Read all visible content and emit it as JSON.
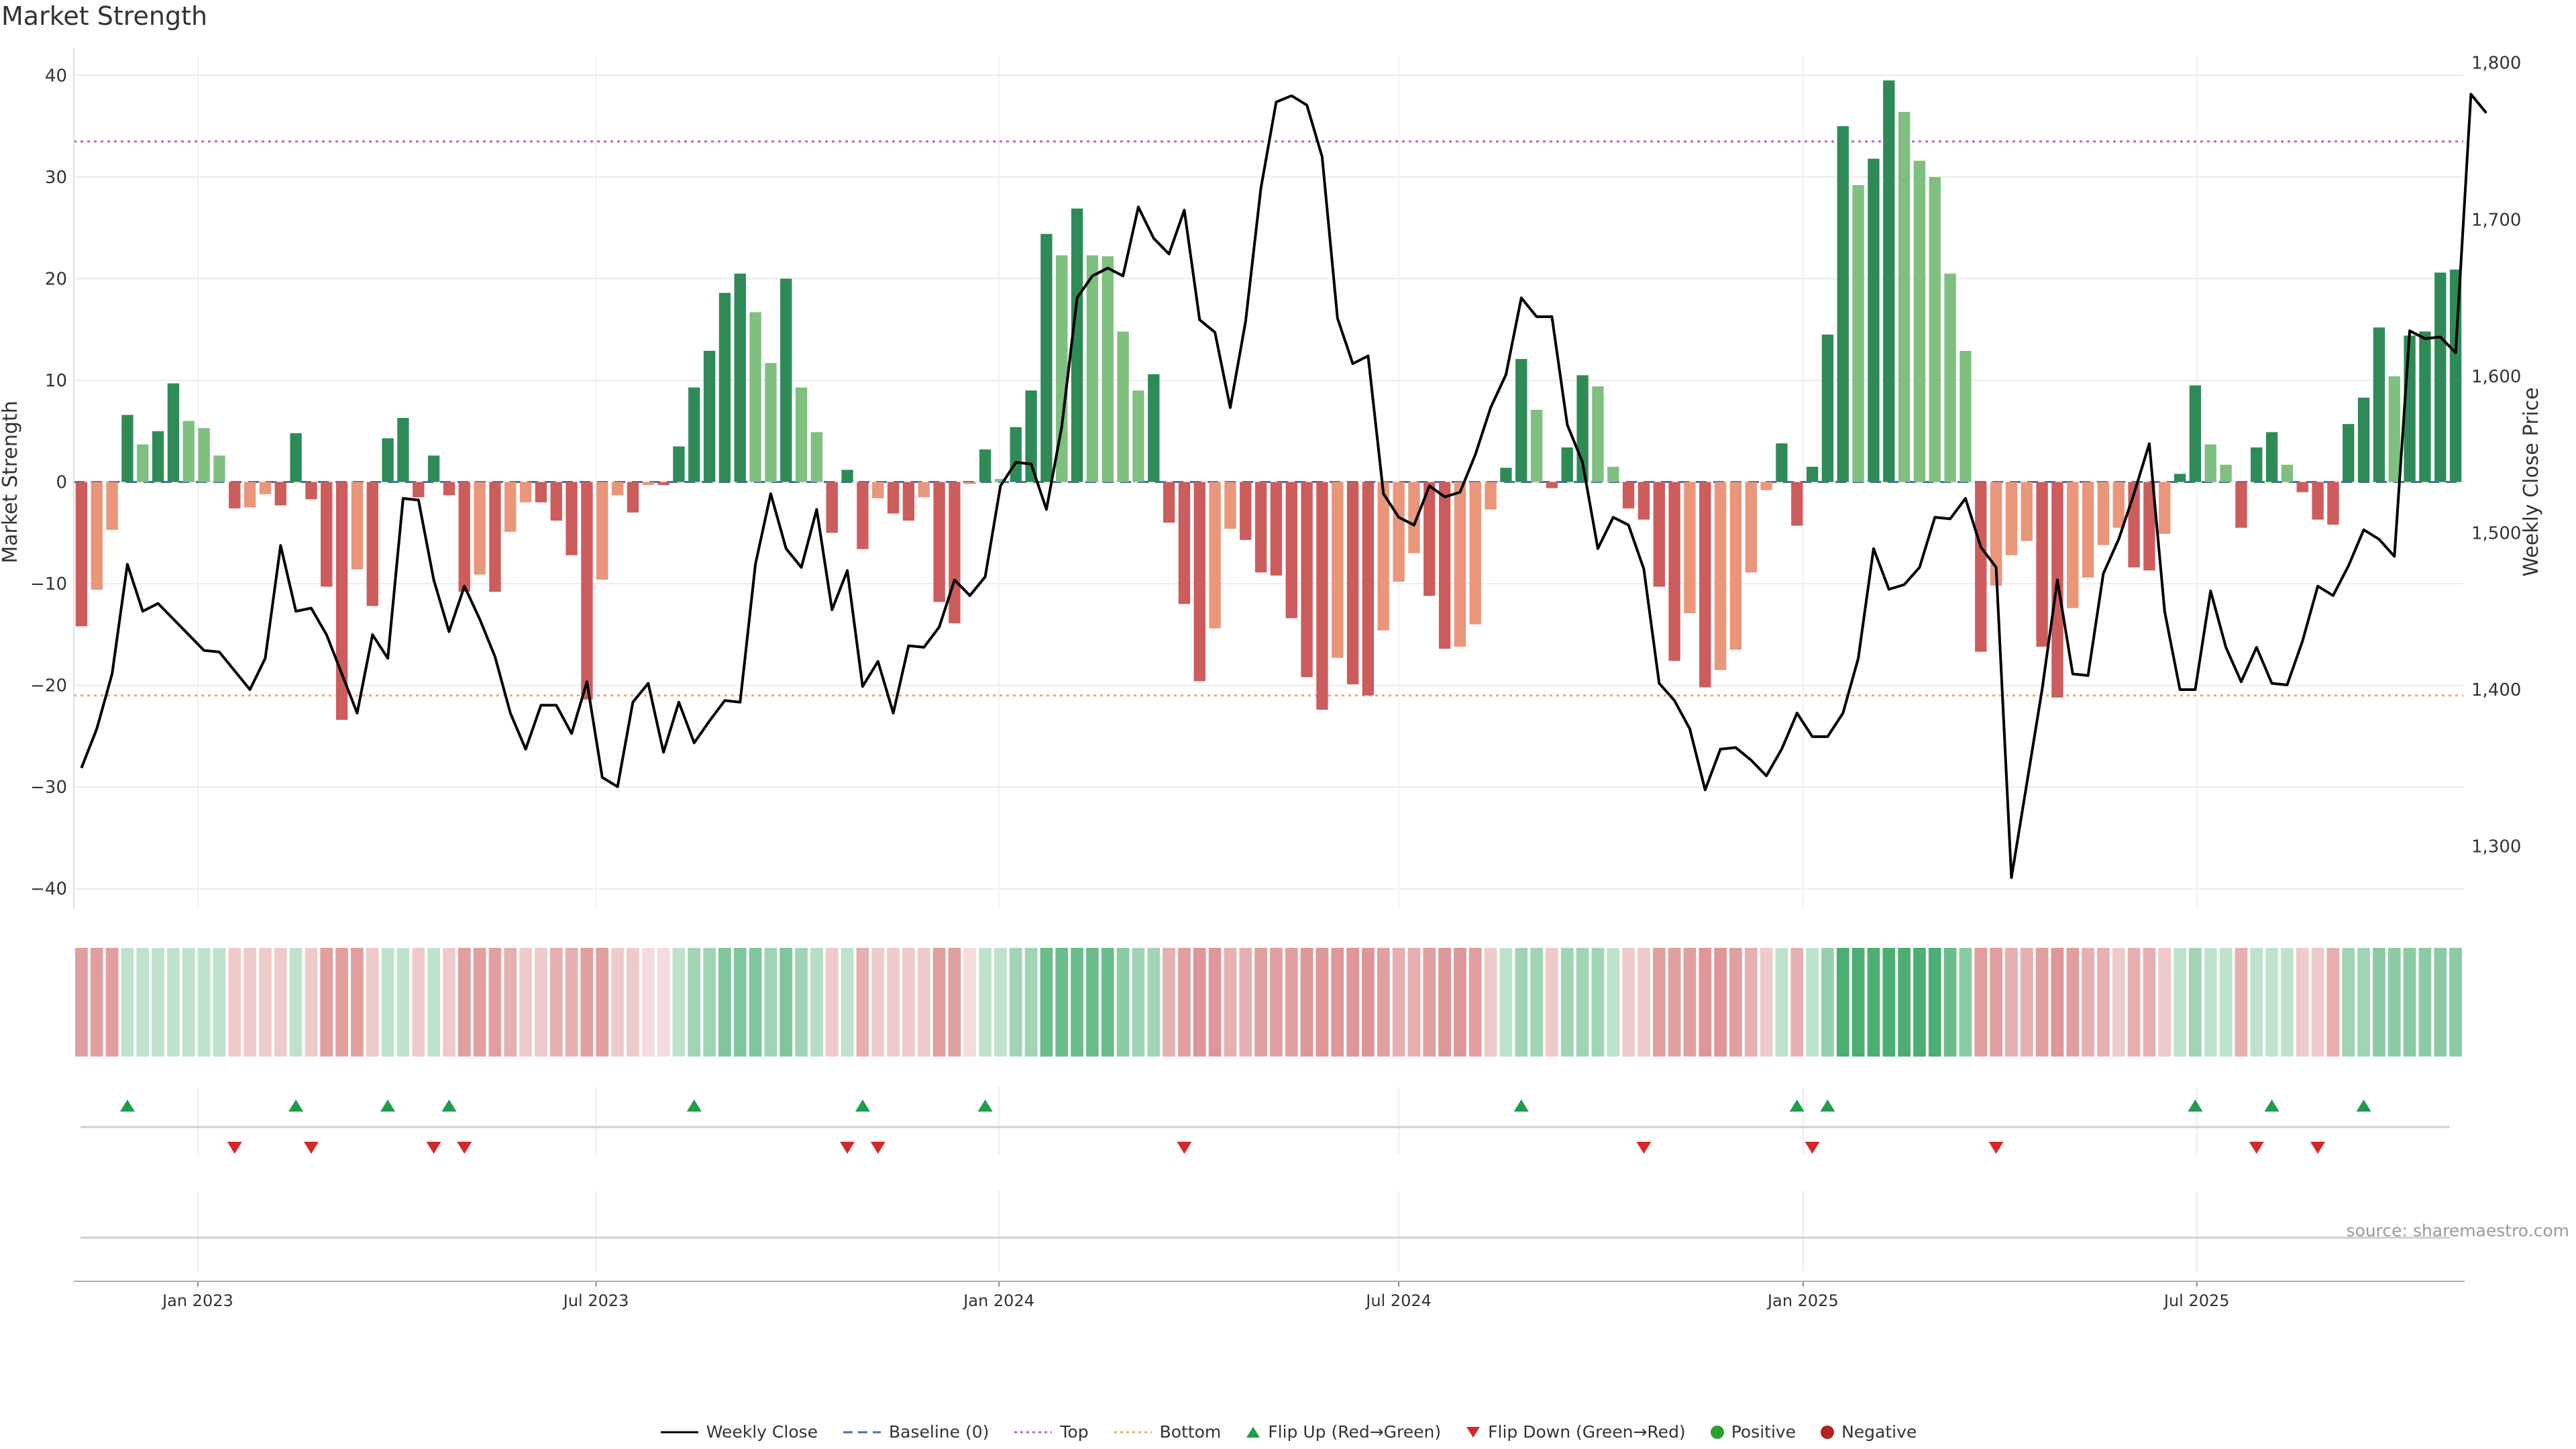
{
  "title": "Market Strength",
  "source": "source: sharemaestro.com",
  "colors": {
    "strong_green": "#2e8b57",
    "light_green": "#7fbf7f",
    "strong_red": "#cd5c5c",
    "light_red": "#e9967a",
    "line": "#000000",
    "baseline": "#4a6fa5",
    "top": "#b565c5",
    "bottom": "#f0a868",
    "flip_up": "#1e9e4a",
    "flip_down": "#d62728",
    "positive": "#2ca02c",
    "negative": "#b22222"
  },
  "legend": [
    {
      "key": "weekly_close",
      "label": "Weekly Close"
    },
    {
      "key": "baseline",
      "label": "Baseline (0)"
    },
    {
      "key": "top",
      "label": "Top"
    },
    {
      "key": "bottom",
      "label": "Bottom"
    },
    {
      "key": "flip_up",
      "label": "Flip Up (Red→Green)"
    },
    {
      "key": "flip_down",
      "label": "Flip Down (Green→Red)"
    },
    {
      "key": "positive",
      "label": "Positive"
    },
    {
      "key": "negative",
      "label": "Negative"
    }
  ],
  "chart_data": {
    "type": "bar",
    "ylabel": "Market Strength",
    "y2label": "Weekly Close Price",
    "ylim": [
      -42,
      42
    ],
    "y2lim": [
      1260,
      1805
    ],
    "yticks": [
      -40,
      -30,
      -20,
      -10,
      0,
      10,
      20,
      30,
      40
    ],
    "y2ticks": [
      1300,
      1400,
      1500,
      1600,
      1700,
      1800
    ],
    "y2ticklabels": [
      "1,300",
      "1,400",
      "1,500",
      "1,600",
      "1,700",
      "1,800"
    ],
    "xticks": [
      "Jan 2023",
      "Jul 2023",
      "Jan 2024",
      "Jul 2024",
      "Jan 2025",
      "Jul 2025"
    ],
    "xtick_weeks": [
      7.6,
      33.6,
      59.9,
      86.0,
      112.4,
      138.1
    ],
    "top_threshold": 33.5,
    "bottom_threshold": -21,
    "grid": true,
    "legend_position": "bottom",
    "strength": [
      -14.2,
      -10.6,
      -4.7,
      6.6,
      3.7,
      5.0,
      9.7,
      6.0,
      5.3,
      2.6,
      -2.6,
      -2.5,
      -1.2,
      -2.3,
      4.8,
      -1.7,
      -10.3,
      -23.4,
      -8.6,
      -12.2,
      4.3,
      6.3,
      -1.5,
      2.6,
      -1.3,
      -10.8,
      -9.1,
      -10.8,
      -4.9,
      -2.0,
      -2.0,
      -3.8,
      -7.2,
      -21.4,
      -9.6,
      -1.3,
      -3.0,
      -0.3,
      -0.3,
      3.5,
      9.3,
      12.9,
      18.6,
      20.5,
      16.7,
      11.7,
      20.0,
      9.3,
      4.9,
      -5.0,
      1.2,
      -6.6,
      -1.6,
      -3.1,
      -3.8,
      -1.5,
      -11.8,
      -13.9,
      -0.2,
      3.2,
      0.3,
      5.4,
      9.0,
      24.4,
      22.3,
      26.9,
      22.3,
      22.2,
      14.8,
      9.0,
      10.6,
      -4.0,
      -12.0,
      -19.6,
      -14.4,
      -4.6,
      -5.7,
      -8.9,
      -9.2,
      -13.4,
      -19.2,
      -22.4,
      -17.3,
      -19.9,
      -21.0,
      -14.6,
      -9.8,
      -7.0,
      -11.2,
      -16.4,
      -16.2,
      -14.0,
      -2.7,
      1.4,
      12.1,
      7.1,
      -0.6,
      3.4,
      10.5,
      9.4,
      1.5,
      -2.6,
      -3.7,
      -10.3,
      -17.6,
      -12.9,
      -20.2,
      -18.5,
      -16.5,
      -8.9,
      -0.8,
      3.8,
      -4.3,
      1.5,
      14.5,
      35.0,
      29.2,
      31.8,
      39.5,
      36.4,
      31.6,
      30.0,
      20.5,
      12.9,
      -16.7,
      -10.2,
      -7.2,
      -5.8,
      -16.2,
      -21.2,
      -12.4,
      -9.4,
      -6.2,
      -4.5,
      -8.4,
      -8.7,
      -5.1,
      0.8,
      9.5,
      3.7,
      1.7,
      -4.5,
      3.4,
      4.9,
      1.7,
      -1.0,
      -3.7,
      -4.2,
      5.7,
      8.3,
      15.2,
      10.4,
      14.4,
      14.8,
      20.6,
      20.9
    ],
    "weekly_close": [
      1350,
      1375,
      1410,
      1480,
      1450,
      1455,
      1445,
      1435,
      1425,
      1424,
      1412,
      1400,
      1420,
      1492,
      1450,
      1452,
      1435,
      1410,
      1385,
      1435,
      1420,
      1522,
      1521,
      1470,
      1437,
      1466,
      1445,
      1421,
      1385,
      1362,
      1390,
      1390,
      1372,
      1405,
      1344,
      1338,
      1392,
      1404,
      1360,
      1392,
      1366,
      1380,
      1393,
      1392,
      1480,
      1525,
      1490,
      1478,
      1515,
      1451,
      1476,
      1402,
      1418,
      1385,
      1428,
      1427,
      1440,
      1470,
      1460,
      1472,
      1530,
      1545,
      1544,
      1515,
      1568,
      1650,
      1664,
      1669,
      1664,
      1708,
      1688,
      1678,
      1706,
      1636,
      1628,
      1580,
      1635,
      1720,
      1775,
      1779,
      1773,
      1740,
      1637,
      1608,
      1613,
      1525,
      1510,
      1505,
      1530,
      1523,
      1526,
      1550,
      1580,
      1601,
      1650,
      1638,
      1638,
      1569,
      1545,
      1490,
      1510,
      1505,
      1477,
      1404,
      1393,
      1375,
      1336,
      1362,
      1363,
      1355,
      1345,
      1362,
      1385,
      1370,
      1370,
      1385,
      1420,
      1490,
      1464,
      1467,
      1478,
      1510,
      1509,
      1522,
      1491,
      1478,
      1280,
      1340,
      1400,
      1470,
      1410,
      1409,
      1474,
      1496,
      1525,
      1557,
      1450,
      1400,
      1400,
      1463,
      1427,
      1405,
      1427,
      1404,
      1403,
      1431,
      1466,
      1460,
      1479,
      1502,
      1496,
      1485,
      1629,
      1624,
      1625,
      1615,
      1780,
      1768
    ],
    "shade_intensity": [
      0.55,
      0.55,
      0.55,
      0.3,
      0.3,
      0.3,
      0.3,
      0.3,
      0.3,
      0.3,
      0.3,
      0.3,
      0.3,
      0.3,
      0.3,
      0.3,
      0.55,
      0.55,
      0.55,
      0.3,
      0.3,
      0.3,
      0.3,
      0.3,
      0.3,
      0.55,
      0.55,
      0.55,
      0.45,
      0.3,
      0.3,
      0.45,
      0.45,
      0.55,
      0.55,
      0.3,
      0.3,
      0.2,
      0.2,
      0.3,
      0.45,
      0.45,
      0.6,
      0.6,
      0.6,
      0.45,
      0.6,
      0.45,
      0.35,
      0.3,
      0.3,
      0.45,
      0.3,
      0.3,
      0.3,
      0.3,
      0.55,
      0.55,
      0.2,
      0.3,
      0.3,
      0.45,
      0.45,
      0.7,
      0.7,
      0.7,
      0.7,
      0.7,
      0.55,
      0.45,
      0.45,
      0.45,
      0.55,
      0.6,
      0.6,
      0.45,
      0.45,
      0.55,
      0.55,
      0.55,
      0.6,
      0.6,
      0.6,
      0.6,
      0.6,
      0.55,
      0.45,
      0.45,
      0.55,
      0.6,
      0.6,
      0.55,
      0.3,
      0.3,
      0.45,
      0.45,
      0.3,
      0.45,
      0.45,
      0.45,
      0.3,
      0.3,
      0.3,
      0.55,
      0.55,
      0.55,
      0.6,
      0.6,
      0.55,
      0.45,
      0.3,
      0.3,
      0.45,
      0.3,
      0.5,
      0.85,
      0.85,
      0.85,
      0.85,
      0.85,
      0.85,
      0.85,
      0.7,
      0.55,
      0.55,
      0.55,
      0.45,
      0.45,
      0.55,
      0.6,
      0.55,
      0.45,
      0.45,
      0.3,
      0.45,
      0.45,
      0.3,
      0.3,
      0.45,
      0.3,
      0.3,
      0.45,
      0.3,
      0.3,
      0.3,
      0.3,
      0.3,
      0.45,
      0.45,
      0.45,
      0.55,
      0.55,
      0.55,
      0.55,
      0.55,
      0.55
    ],
    "flip_up_weeks": [
      3,
      14,
      20,
      24,
      40,
      51,
      59,
      94,
      112,
      114,
      138,
      143,
      149
    ],
    "flip_down_weeks": [
      10,
      15,
      23,
      25,
      50,
      52,
      72,
      102,
      113,
      125,
      142,
      146
    ]
  }
}
